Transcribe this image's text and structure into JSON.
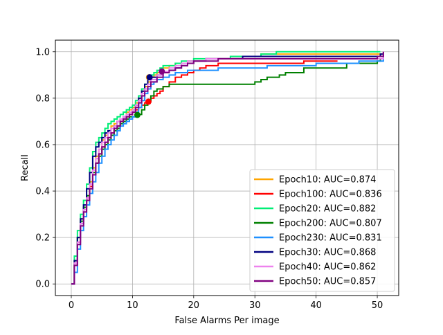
{
  "chart_data": {
    "type": "line",
    "title": "",
    "xlabel": "False Alarms Per image",
    "ylabel": "Recall",
    "xlim": [
      -2.6,
      53.5
    ],
    "ylim": [
      -0.05,
      1.05
    ],
    "xticks": [
      0,
      10,
      20,
      30,
      40,
      50
    ],
    "yticks": [
      0.0,
      0.2,
      0.4,
      0.6,
      0.8,
      1.0
    ],
    "xtick_labels": [
      "0",
      "10",
      "20",
      "30",
      "40",
      "50"
    ],
    "ytick_labels": [
      "0.0",
      "0.2",
      "0.4",
      "0.6",
      "0.8",
      "1.0"
    ],
    "grid": true,
    "legend_position": "lower-right",
    "series": [
      {
        "name": "Epoch10: AUC=0.874",
        "color": "#ffa500",
        "marker": {
          "x": 12.7,
          "y": 0.89
        },
        "x": [
          0,
          0.5,
          1,
          1.5,
          2,
          2.5,
          3,
          3.5,
          4,
          4.5,
          5,
          5.5,
          6,
          6.5,
          7,
          7.5,
          8,
          8.5,
          9,
          9.5,
          10,
          10.5,
          11,
          11.5,
          12,
          12.5,
          13,
          13.5,
          14,
          14.5,
          15,
          16,
          17,
          18,
          19,
          20,
          21,
          22,
          24,
          26,
          28,
          30,
          31,
          33,
          35,
          40,
          45,
          50,
          51
        ],
        "y": [
          0.0,
          0.1,
          0.2,
          0.28,
          0.33,
          0.38,
          0.44,
          0.5,
          0.55,
          0.58,
          0.62,
          0.64,
          0.66,
          0.68,
          0.69,
          0.7,
          0.71,
          0.72,
          0.74,
          0.75,
          0.76,
          0.78,
          0.8,
          0.83,
          0.85,
          0.87,
          0.89,
          0.9,
          0.91,
          0.92,
          0.93,
          0.94,
          0.95,
          0.95,
          0.96,
          0.96,
          0.96,
          0.97,
          0.97,
          0.97,
          0.98,
          0.98,
          0.99,
          0.99,
          0.99,
          0.99,
          0.99,
          0.99,
          1.0
        ]
      },
      {
        "name": "Epoch100: AUC=0.836",
        "color": "#ff0000",
        "marker": {
          "x": 12.6,
          "y": 0.785
        },
        "x": [
          0,
          0.5,
          1,
          1.5,
          2,
          2.5,
          3,
          3.5,
          4,
          4.5,
          5,
          5.5,
          6,
          6.5,
          7,
          7.5,
          8,
          8.5,
          9,
          9.5,
          10,
          10.5,
          11,
          11.5,
          12,
          12.5,
          13,
          13.5,
          14,
          14.5,
          15,
          16,
          17,
          18,
          19,
          20,
          21,
          22,
          24,
          26,
          28,
          30,
          32,
          35,
          38,
          40,
          42,
          43.5
        ],
        "y": [
          0.0,
          0.08,
          0.18,
          0.26,
          0.32,
          0.37,
          0.42,
          0.47,
          0.52,
          0.56,
          0.59,
          0.61,
          0.63,
          0.65,
          0.67,
          0.68,
          0.7,
          0.71,
          0.72,
          0.73,
          0.74,
          0.75,
          0.76,
          0.77,
          0.78,
          0.785,
          0.8,
          0.81,
          0.82,
          0.83,
          0.85,
          0.87,
          0.89,
          0.9,
          0.91,
          0.92,
          0.93,
          0.94,
          0.95,
          0.95,
          0.95,
          0.95,
          0.95,
          0.95,
          0.96,
          0.96,
          0.96,
          0.96
        ]
      },
      {
        "name": "Epoch20: AUC=0.882",
        "color": "#00ee76",
        "marker": null,
        "x": [
          0,
          0.5,
          1,
          1.5,
          2,
          2.5,
          3,
          3.5,
          4,
          4.5,
          5,
          5.5,
          6,
          6.5,
          7,
          7.5,
          8,
          8.5,
          9,
          9.5,
          10,
          10.5,
          11,
          11.5,
          12,
          12.5,
          13,
          13.5,
          14,
          14.5,
          15,
          16,
          17,
          18,
          19,
          20,
          22,
          24,
          26,
          28,
          30,
          31,
          33,
          33.5,
          35,
          40,
          45,
          50,
          50.5
        ],
        "y": [
          0.0,
          0.12,
          0.23,
          0.3,
          0.36,
          0.43,
          0.5,
          0.57,
          0.61,
          0.63,
          0.65,
          0.67,
          0.69,
          0.7,
          0.71,
          0.72,
          0.73,
          0.74,
          0.75,
          0.76,
          0.77,
          0.79,
          0.81,
          0.84,
          0.86,
          0.88,
          0.9,
          0.91,
          0.92,
          0.93,
          0.94,
          0.94,
          0.95,
          0.96,
          0.96,
          0.97,
          0.97,
          0.97,
          0.98,
          0.98,
          0.98,
          0.99,
          0.99,
          1.0,
          1.0,
          1.0,
          1.0,
          1.0,
          1.0
        ]
      },
      {
        "name": "Epoch200: AUC=0.807",
        "color": "#008000",
        "marker": {
          "x": 10.8,
          "y": 0.728
        },
        "x": [
          0,
          0.5,
          1,
          1.5,
          2,
          2.5,
          3,
          3.5,
          4,
          4.5,
          5,
          5.5,
          6,
          6.5,
          7,
          7.5,
          8,
          8.5,
          9,
          9.5,
          10,
          10.5,
          11,
          11.5,
          12,
          12.5,
          13,
          13.5,
          14,
          15,
          16,
          17,
          18,
          19,
          20,
          25,
          29.5,
          30,
          31,
          32,
          33,
          34,
          35,
          36,
          38,
          40,
          45,
          50,
          50.5
        ],
        "y": [
          0.0,
          0.1,
          0.2,
          0.27,
          0.33,
          0.38,
          0.43,
          0.48,
          0.52,
          0.55,
          0.58,
          0.6,
          0.62,
          0.64,
          0.66,
          0.67,
          0.69,
          0.7,
          0.71,
          0.72,
          0.72,
          0.725,
          0.73,
          0.75,
          0.77,
          0.79,
          0.81,
          0.83,
          0.84,
          0.85,
          0.86,
          0.86,
          0.86,
          0.86,
          0.86,
          0.86,
          0.86,
          0.87,
          0.88,
          0.89,
          0.89,
          0.9,
          0.91,
          0.91,
          0.93,
          0.93,
          0.95,
          0.96,
          0.97
        ]
      },
      {
        "name": "Epoch230: AUC=0.831",
        "color": "#1e90ff",
        "marker": null,
        "x": [
          0,
          0.5,
          1,
          1.5,
          2,
          2.5,
          3,
          3.5,
          4,
          4.5,
          5,
          5.5,
          6,
          6.5,
          7,
          7.5,
          8,
          8.5,
          9,
          9.5,
          10,
          10.5,
          11,
          11.5,
          12,
          12.5,
          13,
          13.5,
          14,
          15,
          16,
          17,
          18,
          19,
          20,
          22,
          24,
          26,
          28,
          30,
          32,
          35,
          38,
          40,
          45,
          47,
          50,
          51
        ],
        "y": [
          0.0,
          0.05,
          0.15,
          0.23,
          0.29,
          0.34,
          0.39,
          0.44,
          0.48,
          0.52,
          0.55,
          0.58,
          0.6,
          0.62,
          0.64,
          0.66,
          0.68,
          0.69,
          0.7,
          0.71,
          0.72,
          0.74,
          0.76,
          0.79,
          0.82,
          0.84,
          0.86,
          0.87,
          0.88,
          0.89,
          0.9,
          0.91,
          0.91,
          0.92,
          0.92,
          0.92,
          0.93,
          0.93,
          0.93,
          0.93,
          0.94,
          0.94,
          0.94,
          0.95,
          0.95,
          0.96,
          0.96,
          0.99
        ]
      },
      {
        "name": "Epoch30: AUC=0.868",
        "color": "#000080",
        "marker": {
          "x": 12.8,
          "y": 0.89
        },
        "x": [
          0,
          0.5,
          1,
          1.5,
          2,
          2.5,
          3,
          3.5,
          4,
          4.5,
          5,
          5.5,
          6,
          6.5,
          7,
          7.5,
          8,
          8.5,
          9,
          9.5,
          10,
          10.5,
          11,
          11.5,
          12,
          12.5,
          13,
          14,
          15,
          16,
          17,
          18,
          19,
          20,
          22,
          24,
          26,
          28,
          30,
          35,
          40,
          45,
          50,
          50.5,
          51
        ],
        "y": [
          0.0,
          0.1,
          0.2,
          0.28,
          0.34,
          0.41,
          0.48,
          0.55,
          0.59,
          0.61,
          0.63,
          0.65,
          0.66,
          0.67,
          0.68,
          0.7,
          0.71,
          0.72,
          0.73,
          0.74,
          0.75,
          0.77,
          0.8,
          0.83,
          0.86,
          0.88,
          0.89,
          0.9,
          0.91,
          0.92,
          0.93,
          0.94,
          0.95,
          0.96,
          0.97,
          0.97,
          0.97,
          0.98,
          0.98,
          0.98,
          0.98,
          0.98,
          0.98,
          0.99,
          1.0
        ]
      },
      {
        "name": "Epoch40: AUC=0.862",
        "color": "#ee82ee",
        "marker": {
          "x": 14.8,
          "y": 0.915
        },
        "x": [
          0,
          0.5,
          1,
          1.5,
          2,
          2.5,
          3,
          3.5,
          4,
          4.5,
          5,
          5.5,
          6,
          6.5,
          7,
          7.5,
          8,
          8.5,
          9,
          9.5,
          10,
          10.5,
          11,
          11.5,
          12,
          12.5,
          13,
          14,
          15,
          16,
          17,
          18,
          19,
          20,
          22,
          24,
          26,
          28,
          30,
          35,
          40,
          45,
          50,
          51
        ],
        "y": [
          0.0,
          0.09,
          0.18,
          0.26,
          0.32,
          0.37,
          0.43,
          0.49,
          0.54,
          0.58,
          0.61,
          0.63,
          0.65,
          0.67,
          0.68,
          0.7,
          0.71,
          0.72,
          0.73,
          0.74,
          0.75,
          0.77,
          0.79,
          0.82,
          0.84,
          0.86,
          0.88,
          0.9,
          0.915,
          0.93,
          0.94,
          0.95,
          0.96,
          0.96,
          0.97,
          0.97,
          0.97,
          0.97,
          0.97,
          0.97,
          0.97,
          0.97,
          0.97,
          1.0
        ]
      },
      {
        "name": "Epoch50: AUC=0.857",
        "color": "#800080",
        "marker": {
          "x": 14.8,
          "y": 0.915
        },
        "x": [
          0,
          0.5,
          1,
          1.5,
          2,
          2.5,
          3,
          3.5,
          4,
          4.5,
          5,
          5.5,
          6,
          6.5,
          7,
          7.5,
          8,
          8.5,
          9,
          9.5,
          10,
          10.5,
          11,
          11.5,
          12,
          12.5,
          13,
          14,
          15,
          16,
          17,
          18,
          19,
          20,
          22,
          24,
          26,
          28,
          30,
          35,
          40,
          45,
          50,
          51
        ],
        "y": [
          0.0,
          0.08,
          0.17,
          0.25,
          0.31,
          0.36,
          0.41,
          0.47,
          0.52,
          0.56,
          0.59,
          0.61,
          0.63,
          0.65,
          0.67,
          0.68,
          0.7,
          0.71,
          0.72,
          0.73,
          0.74,
          0.76,
          0.78,
          0.81,
          0.83,
          0.85,
          0.87,
          0.89,
          0.91,
          0.92,
          0.93,
          0.94,
          0.95,
          0.96,
          0.96,
          0.97,
          0.97,
          0.97,
          0.97,
          0.97,
          0.97,
          0.97,
          0.98,
          1.0
        ]
      }
    ]
  }
}
